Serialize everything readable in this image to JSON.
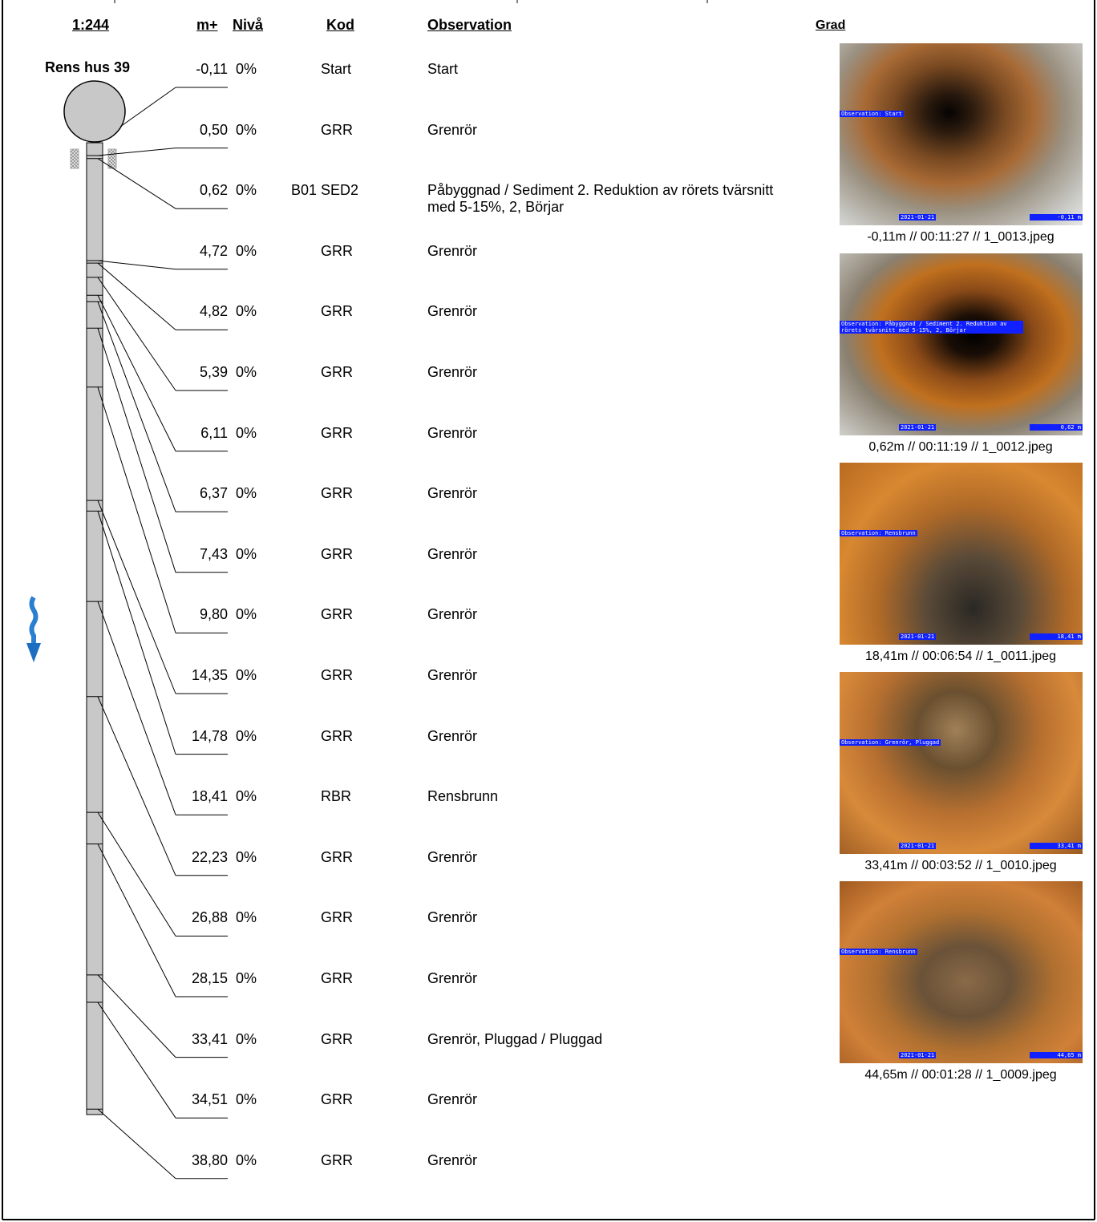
{
  "header": {
    "scale": "1:244",
    "meter": "m+",
    "level": "Nivå",
    "code": "Kod",
    "observation": "Observation",
    "grade": "Grad"
  },
  "manhole": {
    "label": "Rens hus 39"
  },
  "rows": [
    {
      "meter": "-0,11",
      "level": "0%",
      "code": "Start",
      "observation": "Start"
    },
    {
      "meter": "0,50",
      "level": "0%",
      "code": "GRR",
      "observation": "Grenrör"
    },
    {
      "meter": "0,62",
      "level": "0%",
      "ref": "B01",
      "code": "SED2",
      "observation": "Påbyggnad / Sediment 2. Reduktion av rörets tvärsnitt med 5-15%, 2, Börjar"
    },
    {
      "meter": "4,72",
      "level": "0%",
      "code": "GRR",
      "observation": "Grenrör"
    },
    {
      "meter": "4,82",
      "level": "0%",
      "code": "GRR",
      "observation": "Grenrör"
    },
    {
      "meter": "5,39",
      "level": "0%",
      "code": "GRR",
      "observation": "Grenrör"
    },
    {
      "meter": "6,11",
      "level": "0%",
      "code": "GRR",
      "observation": "Grenrör"
    },
    {
      "meter": "6,37",
      "level": "0%",
      "code": "GRR",
      "observation": "Grenrör"
    },
    {
      "meter": "7,43",
      "level": "0%",
      "code": "GRR",
      "observation": "Grenrör"
    },
    {
      "meter": "9,80",
      "level": "0%",
      "code": "GRR",
      "observation": "Grenrör"
    },
    {
      "meter": "14,35",
      "level": "0%",
      "code": "GRR",
      "observation": "Grenrör"
    },
    {
      "meter": "14,78",
      "level": "0%",
      "code": "GRR",
      "observation": "Grenrör"
    },
    {
      "meter": "18,41",
      "level": "0%",
      "code": "RBR",
      "observation": "Rensbrunn"
    },
    {
      "meter": "22,23",
      "level": "0%",
      "code": "GRR",
      "observation": "Grenrör"
    },
    {
      "meter": "26,88",
      "level": "0%",
      "code": "GRR",
      "observation": "Grenrör"
    },
    {
      "meter": "28,15",
      "level": "0%",
      "code": "GRR",
      "observation": "Grenrör"
    },
    {
      "meter": "33,41",
      "level": "0%",
      "code": "GRR",
      "observation": "Grenrör, Pluggad / Pluggad"
    },
    {
      "meter": "34,51",
      "level": "0%",
      "code": "GRR",
      "observation": "Grenrör"
    },
    {
      "meter": "38,80",
      "level": "0%",
      "code": "GRR",
      "observation": "Grenrör"
    }
  ],
  "photos": [
    {
      "overlay": "Observation: Start",
      "date": "2021-01-21",
      "meter": "-0,11 m",
      "caption": "-0,11m // 00:11:27 // 1_0013.jpeg"
    },
    {
      "overlay": "Observation: Påbyggnad / Sediment 2. Reduktion av rörets tvärsnitt med 5-15%, 2, Börjar",
      "date": "2021-01-21",
      "meter": "0,62 m",
      "caption": "0,62m // 00:11:19 // 1_0012.jpeg"
    },
    {
      "overlay": "Observation: Rensbrunn",
      "date": "2021-01-21",
      "meter": "18,41 m",
      "caption": "18,41m // 00:06:54 // 1_0011.jpeg"
    },
    {
      "overlay": "Observation: Grenrör, Pluggad",
      "date": "2021-01-21",
      "meter": "33,41 m",
      "caption": "33,41m // 00:03:52 // 1_0010.jpeg"
    },
    {
      "overlay": "Observation: Rensbrunn",
      "date": "2021-01-21",
      "meter": "44,65 m",
      "caption": "44,65m // 00:01:28 // 1_0009.jpeg"
    }
  ]
}
